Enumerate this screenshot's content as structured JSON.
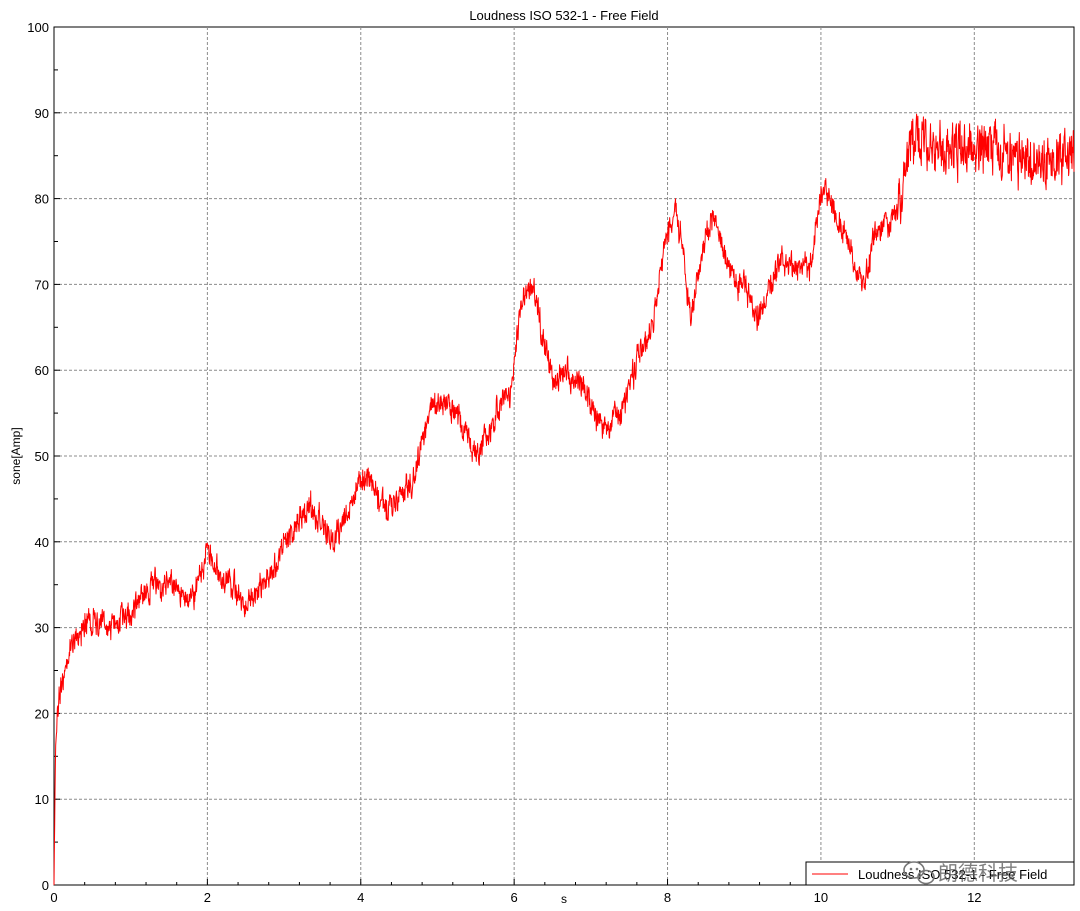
{
  "chart_data": {
    "type": "line",
    "title": "Loudness ISO 532-1 - Free Field",
    "xlabel": "s",
    "ylabel": "sone[Amp]",
    "xlim": [
      0,
      13.3
    ],
    "ylim": [
      0,
      100
    ],
    "xticks": [
      0,
      2,
      4,
      6,
      8,
      10,
      12
    ],
    "yticks": [
      0,
      10,
      20,
      30,
      40,
      50,
      60,
      70,
      80,
      90,
      100
    ],
    "grid": true,
    "legend_position": "bottom-right",
    "colors": {
      "series": "#ff0000",
      "grid": "#8c8c8c",
      "background": "#ffffff"
    },
    "series": [
      {
        "name": "Loudness ISO 532-1 - Free Field",
        "noise": 1.2,
        "x": [
          0,
          0.02,
          0.05,
          0.1,
          0.2,
          0.3,
          0.45,
          0.6,
          0.8,
          1.0,
          1.2,
          1.4,
          1.6,
          1.75,
          1.8,
          1.9,
          2.0,
          2.1,
          2.3,
          2.5,
          2.6,
          2.8,
          3.0,
          3.2,
          3.35,
          3.5,
          3.65,
          3.8,
          3.95,
          4.1,
          4.2,
          4.35,
          4.5,
          4.7,
          4.9,
          5.1,
          5.3,
          5.5,
          5.7,
          5.85,
          5.95,
          6.05,
          6.15,
          6.25,
          6.35,
          6.5,
          6.7,
          6.9,
          7.05,
          7.2,
          7.4,
          7.6,
          7.8,
          7.95,
          8.1,
          8.2,
          8.3,
          8.45,
          8.6,
          8.75,
          8.9,
          9.0,
          9.15,
          9.3,
          9.5,
          9.7,
          9.85,
          10.0,
          10.15,
          10.3,
          10.45,
          10.55,
          10.7,
          10.9,
          11.05,
          11.15,
          11.3,
          11.5,
          11.8,
          12.1,
          12.4,
          12.7,
          13.0,
          13.3
        ],
        "y": [
          0,
          16,
          20,
          24,
          27,
          29,
          31,
          30,
          30,
          32,
          34.5,
          35,
          35,
          33,
          32.5,
          36,
          38.5,
          37,
          35,
          33,
          33.5,
          36,
          39.5,
          43,
          44,
          41.5,
          40,
          43,
          46.5,
          48,
          45,
          43.5,
          45,
          48,
          55.5,
          56,
          54,
          50,
          53,
          57.5,
          56.5,
          65,
          69.5,
          70,
          65,
          59,
          60,
          58,
          55,
          53.5,
          55,
          61,
          65,
          74,
          79,
          74,
          66,
          74,
          77.5,
          73,
          70.5,
          70,
          66,
          69,
          73,
          71.5,
          72,
          80.5,
          79.5,
          76,
          72,
          69.5,
          76,
          77,
          80,
          86.5,
          87.5,
          86,
          86,
          86,
          85.5,
          85,
          84.5,
          85
        ]
      }
    ]
  }
}
